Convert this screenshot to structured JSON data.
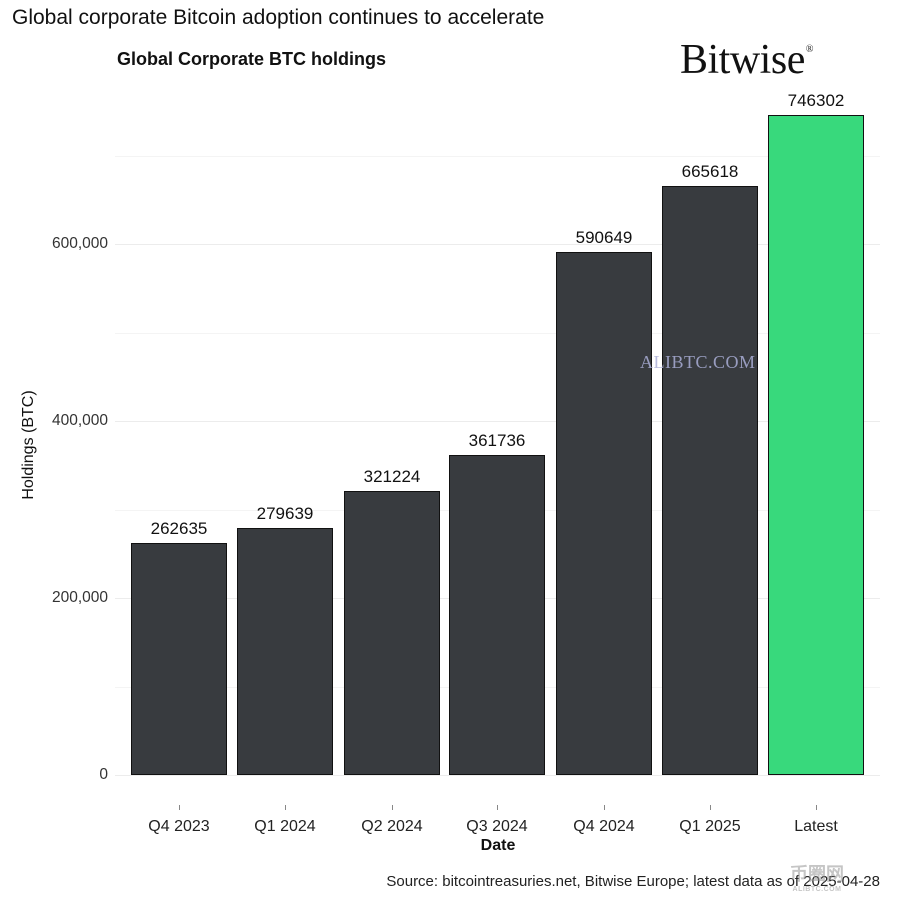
{
  "title": "Global corporate Bitcoin adoption continues to accelerate",
  "subtitle": "Global Corporate BTC holdings",
  "logo": {
    "text": "Bitwise",
    "mark": "®"
  },
  "watermark": "ALIBTC.COM",
  "corner_watermark": {
    "text": "币圈网",
    "sub": "ALIBTC.COM"
  },
  "source": "Source: bitcointreasuries.net, Bitwise Europe; latest data as of 2025-04-28",
  "colors": {
    "bar": "#383b3f",
    "highlight": "#38d97c",
    "border": "#111111"
  },
  "y_ticks": [
    "0",
    "200,000",
    "400,000",
    "600,000"
  ],
  "chart_data": {
    "type": "bar",
    "title": "Global corporate Bitcoin adoption continues to accelerate",
    "subtitle": "Global Corporate BTC holdings",
    "xlabel": "Date",
    "ylabel": "Holdings (BTC)",
    "categories": [
      "Q4 2023",
      "Q1 2024",
      "Q2 2024",
      "Q3 2024",
      "Q4 2024",
      "Q1 2025",
      "Latest"
    ],
    "values": [
      262635,
      279639,
      321224,
      361736,
      590649,
      665618,
      746302
    ],
    "value_labels": [
      "262635",
      "279639",
      "321224",
      "361736",
      "590649",
      "665618",
      "746302"
    ],
    "highlight_category": "Latest",
    "ylim": [
      0,
      760000
    ],
    "y_ticks": [
      0,
      200000,
      400000,
      600000
    ],
    "grid": true,
    "legend": "none",
    "source": "bitcointreasuries.net, Bitwise Europe; latest data as of 2025-04-28"
  }
}
